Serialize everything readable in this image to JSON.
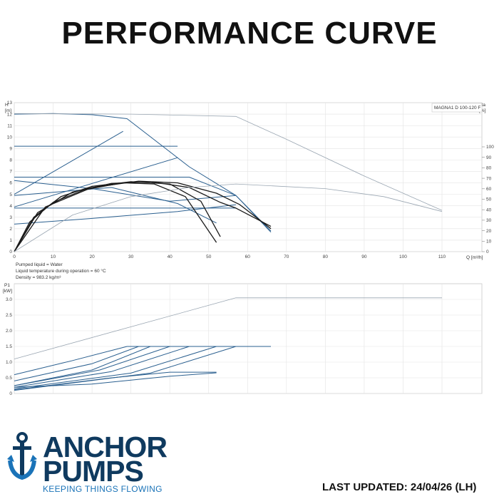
{
  "page": {
    "title": "PERFORMANCE CURVE",
    "brand_line1": "ANCHOR",
    "brand_line2": "PUMPS",
    "tagline": "KEEPING THINGS FLOWING",
    "last_updated": "LAST UPDATED: 24/04/26 (LH)",
    "colors": {
      "brand_navy": "#0f3a5f",
      "brand_blue": "#1a73b8",
      "curve_blue": "#2a5f8f",
      "curve_black": "#1a1a1a",
      "curve_grey": "#9aa6b2"
    }
  },
  "chart_data": [
    {
      "type": "line",
      "title": "",
      "model_label": "MAGNA1 D 100-120 F",
      "ylabel": "H\n[m]",
      "y2label": "eta\n[%]",
      "xlabel": "Q [m³/h]",
      "xlim": [
        0,
        110
      ],
      "ylim": [
        0,
        13
      ],
      "y2lim": [
        0,
        100
      ],
      "x_ticks": [
        0,
        10,
        20,
        30,
        40,
        50,
        60,
        70,
        80,
        90,
        100,
        110
      ],
      "y_ticks": [
        0,
        1,
        2,
        3,
        4,
        5,
        6,
        7,
        8,
        9,
        10,
        11,
        12,
        13
      ],
      "y2_ticks": [
        0,
        10,
        20,
        30,
        40,
        50,
        60,
        70,
        80,
        90,
        100
      ],
      "grid": true,
      "notes": [
        "Pumped liquid = Water",
        "Liquid temperature during operation = 60 °C",
        "Density = 983.2 kg/m³"
      ],
      "series": [
        {
          "style": "blue",
          "points": [
            [
              0,
              12.0
            ],
            [
              10,
              12.05
            ],
            [
              20,
              11.95
            ],
            [
              29,
              11.6
            ],
            [
              45,
              7.4
            ],
            [
              57,
              4.9
            ],
            [
              66,
              1.7
            ]
          ]
        },
        {
          "style": "blue",
          "points": [
            [
              0,
              6.5
            ],
            [
              45,
              6.5
            ],
            [
              57,
              4.9
            ]
          ]
        },
        {
          "style": "blue",
          "points": [
            [
              0,
              6.2
            ],
            [
              20,
              5.5
            ],
            [
              40,
              4.4
            ],
            [
              57,
              4.9
            ]
          ]
        },
        {
          "style": "blue",
          "points": [
            [
              0,
              4.9
            ],
            [
              25,
              5.6
            ],
            [
              42,
              4.2
            ],
            [
              52,
              2.5
            ]
          ]
        },
        {
          "style": "blue",
          "points": [
            [
              0,
              3.8
            ],
            [
              57,
              3.8
            ]
          ]
        },
        {
          "style": "blue",
          "points": [
            [
              0,
              2.4
            ],
            [
              20,
              2.9
            ],
            [
              42,
              3.5
            ],
            [
              57,
              4.1
            ]
          ]
        },
        {
          "style": "blue",
          "points": [
            [
              0,
              5.0
            ],
            [
              28,
              10.5
            ]
          ]
        },
        {
          "style": "blue",
          "points": [
            [
              0,
              3.9
            ],
            [
              42,
              8.2
            ]
          ]
        },
        {
          "style": "blue",
          "points": [
            [
              0,
              9.2
            ],
            [
              42,
              9.2
            ]
          ]
        },
        {
          "style": "blue",
          "points": [
            [
              57,
              4.9
            ],
            [
              66,
              1.8
            ]
          ]
        },
        {
          "style": "black",
          "points": [
            [
              0,
              0
            ],
            [
              5,
              3.0
            ],
            [
              12,
              4.8
            ],
            [
              20,
              5.7
            ],
            [
              30,
              6.1
            ],
            [
              40,
              5.9
            ],
            [
              48,
              4.4
            ],
            [
              53,
              1.3
            ]
          ]
        },
        {
          "style": "black",
          "points": [
            [
              0,
              0
            ],
            [
              6,
              3.4
            ],
            [
              15,
              5.2
            ],
            [
              25,
              5.95
            ],
            [
              35,
              6.1
            ],
            [
              45,
              5.6
            ],
            [
              53,
              4.3
            ],
            [
              57,
              3.8
            ],
            [
              66,
              2.2
            ]
          ]
        },
        {
          "style": "black",
          "points": [
            [
              0,
              0
            ],
            [
              8,
              3.9
            ],
            [
              20,
              5.6
            ],
            [
              32,
              6.15
            ],
            [
              42,
              6.0
            ],
            [
              52,
              5.1
            ],
            [
              58,
              4.1
            ],
            [
              66,
              2.0
            ]
          ]
        },
        {
          "style": "black",
          "points": [
            [
              0,
              0
            ],
            [
              4,
              2.6
            ],
            [
              10,
              4.3
            ],
            [
              18,
              5.4
            ],
            [
              28,
              6.0
            ],
            [
              36,
              5.9
            ],
            [
              44,
              4.8
            ],
            [
              52,
              0.8
            ]
          ]
        },
        {
          "style": "grey",
          "points": [
            [
              0,
              12.05
            ],
            [
              30,
              12.0
            ],
            [
              57,
              11.8
            ],
            [
              70,
              9.8
            ],
            [
              90,
              6.6
            ],
            [
              110,
              3.6
            ]
          ]
        },
        {
          "style": "grey",
          "points": [
            [
              0,
              0
            ],
            [
              15,
              3.2
            ],
            [
              30,
              4.8
            ],
            [
              45,
              5.6
            ],
            [
              57,
              5.9
            ],
            [
              80,
              5.5
            ],
            [
              95,
              4.8
            ],
            [
              110,
              3.5
            ]
          ]
        }
      ]
    },
    {
      "type": "line",
      "title": "",
      "ylabel": "P1\n[kW]",
      "xlim": [
        0,
        110
      ],
      "ylim": [
        0,
        3.5
      ],
      "y_ticks": [
        0,
        0.5,
        1.0,
        1.5,
        2.0,
        2.5,
        3.0
      ],
      "y_tick_labels": [
        "0",
        "0.5",
        "1.0",
        "1.5",
        "2.0",
        "2.5",
        "3.0"
      ],
      "grid": true,
      "series": [
        {
          "style": "grey",
          "points": [
            [
              0,
              1.1
            ],
            [
              57,
              3.05
            ],
            [
              110,
              3.05
            ]
          ]
        },
        {
          "style": "blue",
          "points": [
            [
              0,
              0.6
            ],
            [
              15,
              1.05
            ],
            [
              29,
              1.5
            ],
            [
              66,
              1.5
            ]
          ]
        },
        {
          "style": "blue",
          "points": [
            [
              0,
              0.4
            ],
            [
              20,
              0.95
            ],
            [
              32,
              1.5
            ]
          ]
        },
        {
          "style": "blue",
          "points": [
            [
              0,
              0.25
            ],
            [
              20,
              0.75
            ],
            [
              35,
              1.5
            ]
          ]
        },
        {
          "style": "blue",
          "points": [
            [
              0,
              0.25
            ],
            [
              22,
              0.75
            ],
            [
              40,
              1.5
            ]
          ]
        },
        {
          "style": "blue",
          "points": [
            [
              0,
              0.2
            ],
            [
              25,
              0.7
            ],
            [
              45,
              1.5
            ]
          ]
        },
        {
          "style": "blue",
          "points": [
            [
              0,
              0.15
            ],
            [
              30,
              0.65
            ],
            [
              52,
              1.5
            ]
          ]
        },
        {
          "style": "blue",
          "points": [
            [
              0,
              0.1
            ],
            [
              35,
              0.65
            ],
            [
              57,
              1.5
            ]
          ]
        },
        {
          "style": "blue",
          "points": [
            [
              0,
              0.12
            ],
            [
              25,
              0.5
            ],
            [
              40,
              0.68
            ],
            [
              52,
              0.68
            ]
          ]
        },
        {
          "style": "blue",
          "points": [
            [
              0,
              0.2
            ],
            [
              20,
              0.3
            ],
            [
              40,
              0.55
            ],
            [
              52,
              0.66
            ]
          ]
        }
      ]
    }
  ]
}
